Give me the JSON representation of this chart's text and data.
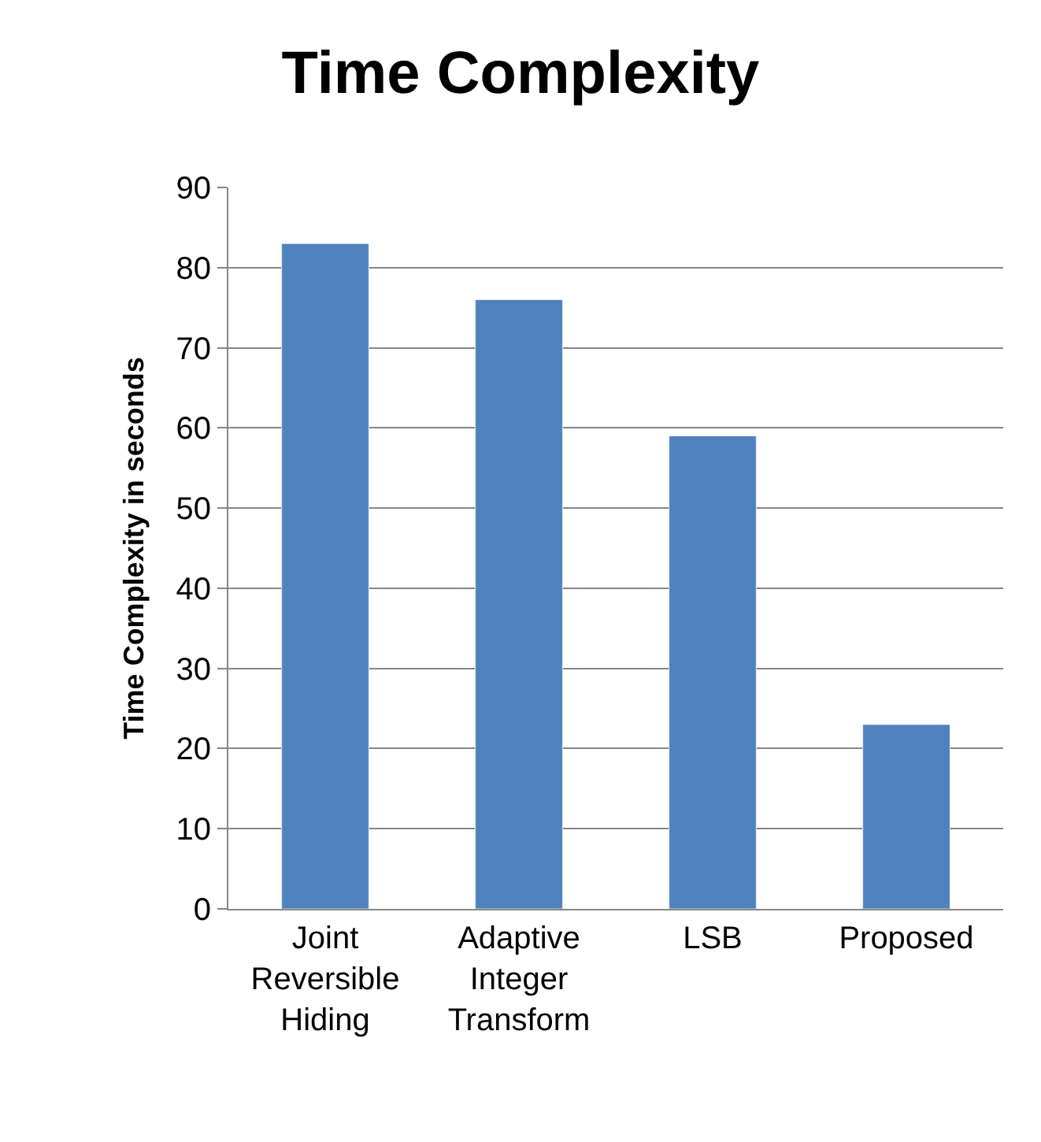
{
  "chart_data": {
    "type": "bar",
    "title": "Time Complexity",
    "ylabel": "Time Complexity in seconds",
    "categories": [
      "Joint Reversible Hiding",
      "Adaptive Integer Transform",
      "LSB",
      "Proposed"
    ],
    "values": [
      83,
      76,
      59,
      23
    ],
    "color": "#4f81bd",
    "ylim": [
      0,
      90
    ],
    "yticks": [
      0,
      10,
      20,
      30,
      40,
      50,
      60,
      70,
      80,
      90
    ],
    "grid": "y",
    "legend": false
  }
}
